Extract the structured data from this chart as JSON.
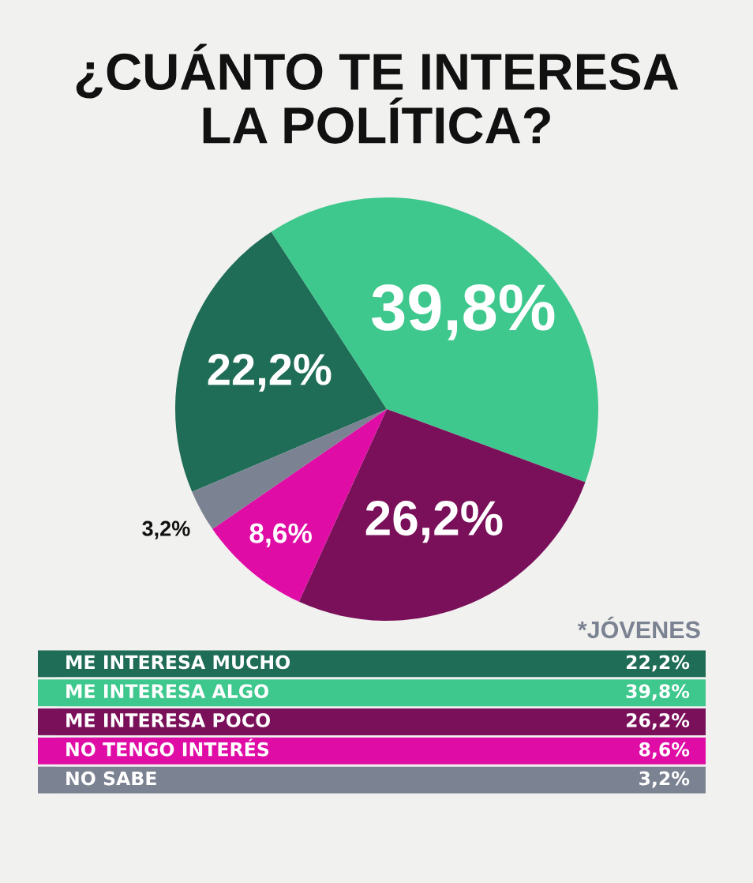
{
  "chart_data": {
    "type": "pie",
    "title": "¿CUÁNTO TE INTERESA\nLA POLÍTICA?",
    "categories": [
      "ME INTERESA MUCHO",
      "ME INTERESA ALGO",
      "ME INTERESA POCO",
      "NO TENGO INTERÉS",
      "NO SABE"
    ],
    "values": [
      22.2,
      39.8,
      26.2,
      8.6,
      3.2
    ],
    "colors": [
      "#1f6d56",
      "#3fc88e",
      "#7a105a",
      "#e00ca6",
      "#7b8292"
    ],
    "value_labels": [
      "22,2%",
      "39,8%",
      "26,2%",
      "8,6%",
      "3,2%"
    ],
    "legend": "bottom",
    "annotations": [
      "*JÓVENES"
    ]
  }
}
